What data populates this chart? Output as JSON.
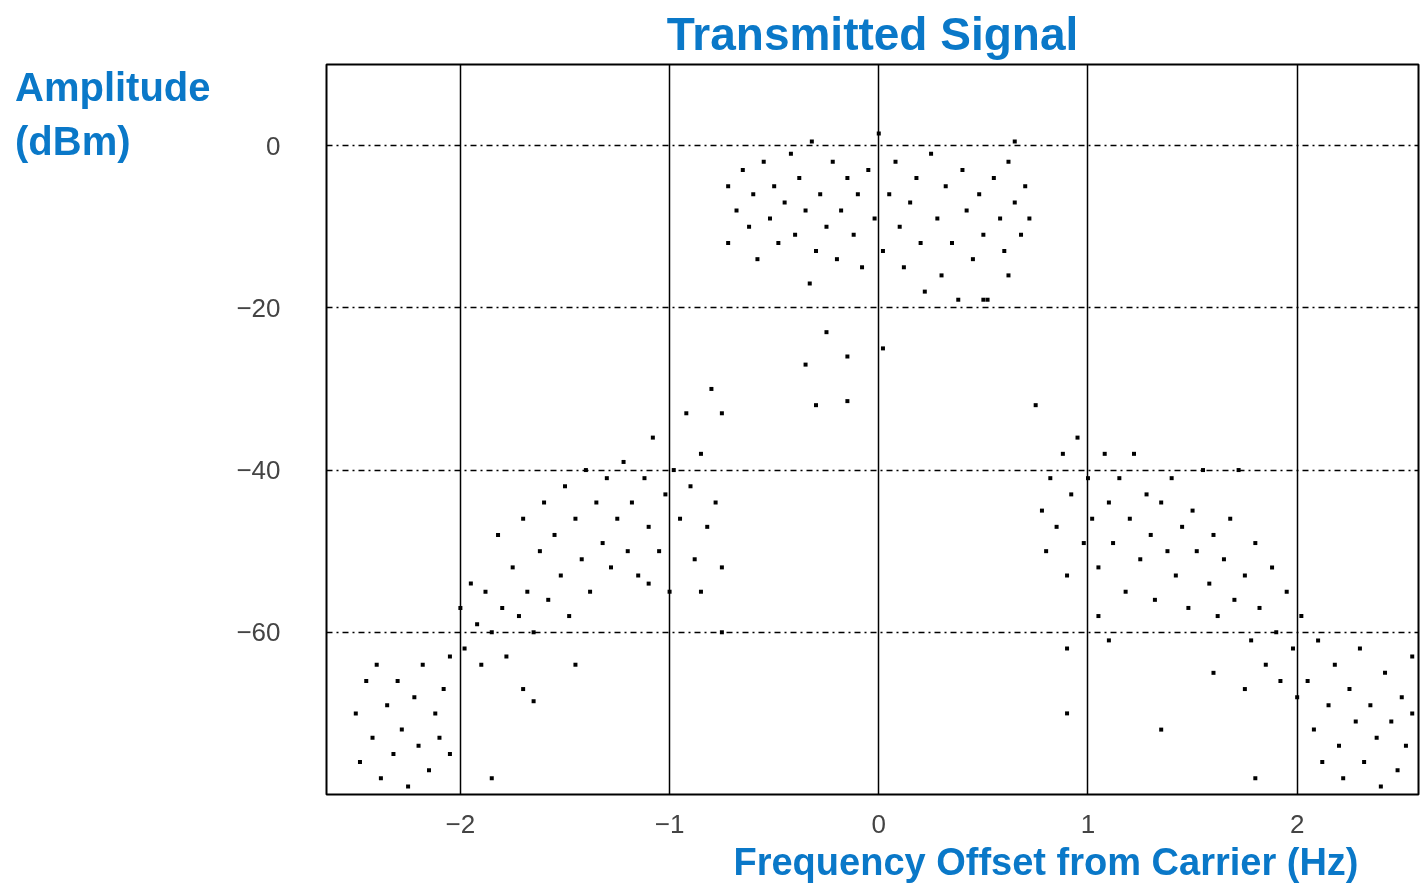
{
  "chart_data": {
    "type": "scatter",
    "title": "Transmitted Signal",
    "xlabel": "Frequency Offset from Carrier (Hz)",
    "ylabel": "Amplitude (dBm)",
    "xlim": [
      -2.64,
      2.58
    ],
    "ylim": [
      -80,
      10
    ],
    "xticks": [
      -2,
      -1,
      0,
      1,
      2
    ],
    "yticks": [
      0,
      -20,
      -40,
      -60
    ],
    "grid": true,
    "marker": "square",
    "series": [
      {
        "color": "#000000",
        "x": [
          -0.72,
          -0.72,
          -0.68,
          -0.65,
          -0.62,
          -0.6,
          -0.58,
          -0.55,
          -0.52,
          -0.5,
          -0.48,
          -0.45,
          -0.42,
          -0.4,
          -0.38,
          -0.35,
          -0.33,
          -0.32,
          -0.3,
          -0.28,
          -0.25,
          -0.22,
          -0.2,
          -0.18,
          -0.15,
          -0.12,
          -0.1,
          -0.08,
          -0.05,
          -0.02,
          0,
          0.02,
          0.05,
          0.08,
          0.1,
          0.12,
          0.15,
          0.18,
          0.2,
          0.22,
          0.25,
          0.28,
          0.3,
          0.32,
          0.35,
          0.38,
          0.4,
          0.42,
          0.45,
          0.48,
          0.5,
          0.52,
          0.55,
          0.58,
          0.6,
          0.62,
          0.65,
          0.68,
          0.7,
          0.72,
          0.65,
          -0.35,
          -0.3,
          -0.25,
          -0.15,
          -0.15,
          0.02,
          0.5,
          0.62,
          -2.0,
          -1.98,
          -1.95,
          -1.92,
          -1.9,
          -1.88,
          -1.85,
          -1.82,
          -1.8,
          -1.78,
          -1.75,
          -1.72,
          -1.7,
          -1.68,
          -1.65,
          -1.62,
          -1.6,
          -1.58,
          -1.55,
          -1.52,
          -1.5,
          -1.48,
          -1.45,
          -1.42,
          -1.4,
          -1.38,
          -1.35,
          -1.32,
          -1.3,
          -1.28,
          -1.25,
          -1.22,
          -1.2,
          -1.18,
          -1.15,
          -1.12,
          -1.1,
          -1.08,
          -1.05,
          -1.02,
          -1.0,
          -0.98,
          -0.95,
          -0.92,
          -0.9,
          -0.88,
          -0.85,
          -0.82,
          -0.8,
          -0.78,
          -0.75,
          -0.75,
          -0.75,
          -1.45,
          -1.1,
          -0.85,
          -2.5,
          -2.48,
          -2.45,
          -2.42,
          -2.4,
          -2.38,
          -2.35,
          -2.32,
          -2.3,
          -2.28,
          -2.25,
          -2.22,
          -2.2,
          -2.18,
          -2.15,
          -2.12,
          -2.1,
          -2.08,
          -2.05,
          -2.05,
          0.75,
          0.78,
          0.8,
          0.82,
          0.85,
          0.88,
          0.9,
          0.92,
          0.95,
          0.98,
          1.0,
          1.02,
          1.05,
          1.08,
          1.1,
          1.12,
          1.15,
          1.18,
          1.2,
          1.22,
          1.25,
          1.28,
          1.3,
          1.32,
          1.35,
          1.38,
          1.4,
          1.42,
          1.45,
          1.48,
          1.5,
          1.52,
          1.55,
          1.58,
          1.6,
          1.62,
          1.65,
          1.68,
          1.7,
          1.72,
          1.75,
          1.78,
          1.8,
          1.82,
          1.85,
          1.88,
          1.9,
          1.92,
          1.95,
          1.98,
          2.0,
          1.05,
          0.9,
          1.1,
          1.6,
          1.75,
          2.02,
          2.05,
          2.08,
          2.1,
          2.12,
          2.15,
          2.18,
          2.2,
          2.22,
          2.25,
          2.28,
          2.3,
          2.32,
          2.35,
          2.38,
          2.4,
          2.42,
          2.45,
          2.48,
          2.5,
          2.52,
          2.55,
          2.55,
          -1.85,
          1.35,
          0.9,
          1.8,
          -1.7,
          -1.65
        ],
        "values": [
          -5,
          -12,
          -8,
          -3,
          -10,
          -6,
          -14,
          -2,
          -9,
          -5,
          -12,
          -7,
          -1,
          -11,
          -4,
          -8,
          -17,
          0.5,
          -13,
          -6,
          -10,
          -2,
          -14,
          -8,
          -4,
          -11,
          -6,
          -15,
          -3,
          -9,
          1.5,
          -13,
          -6,
          -2,
          -10,
          -15,
          -7,
          -4,
          -12,
          -18,
          -1,
          -9,
          -16,
          -5,
          -12,
          -19,
          -3,
          -8,
          -14,
          -6,
          -11,
          -19,
          -4,
          -9,
          -13,
          -2,
          -7,
          -11,
          -5,
          -9,
          0.5,
          -27,
          -32,
          -23,
          -26,
          -31.5,
          -25,
          -19,
          -16,
          -57,
          -62,
          -54,
          -59,
          -64,
          -55,
          -60,
          -48,
          -57,
          -63,
          -52,
          -58,
          -46,
          -55,
          -60,
          -50,
          -44,
          -56,
          -48,
          -53,
          -42,
          -58,
          -46,
          -51,
          -40,
          -55,
          -44,
          -49,
          -41,
          -52,
          -46,
          -39,
          -50,
          -44,
          -53,
          -41,
          -47,
          -36,
          -50,
          -43,
          -55,
          -40,
          -46,
          -33,
          -42,
          -51,
          -38,
          -47,
          -30,
          -44,
          -33,
          -52,
          -60,
          -64,
          -54,
          -55,
          -70,
          -76,
          -66,
          -73,
          -64,
          -78,
          -69,
          -75,
          -66,
          -72,
          -79,
          -68,
          -74,
          -64,
          -77,
          -70,
          -73,
          -67,
          -75,
          -63,
          -32,
          -45,
          -50,
          -41,
          -47,
          -38,
          -53,
          -43,
          -36,
          -49,
          -41,
          -46,
          -52,
          -38,
          -44,
          -49,
          -41,
          -55,
          -46,
          -38,
          -51,
          -43,
          -48,
          -56,
          -44,
          -50,
          -41,
          -53,
          -47,
          -57,
          -45,
          -50,
          -40,
          -54,
          -48,
          -58,
          -51,
          -46,
          -56,
          -40,
          -53,
          -61,
          -49,
          -57,
          -64,
          -52,
          -60,
          -66,
          -55,
          -62,
          -68,
          -58,
          -62,
          -61,
          -65,
          -67,
          -58,
          -66,
          -72,
          -61,
          -76,
          -69,
          -64,
          -74,
          -78,
          -67,
          -71,
          -62,
          -76,
          -69,
          -73,
          -79,
          -65,
          -71,
          -77,
          -68,
          -74,
          -70,
          -63,
          -78,
          -72,
          -70,
          -78,
          -67,
          -68.5
        ]
      }
    ]
  }
}
